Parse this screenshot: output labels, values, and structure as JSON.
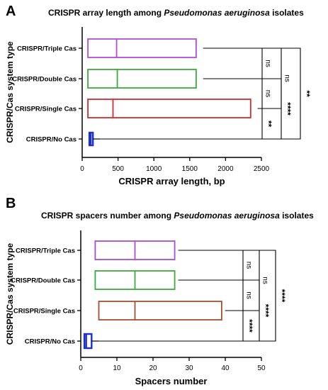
{
  "chart_data": [
    {
      "panel_label": "A",
      "type": "box",
      "orientation": "horizontal",
      "title_parts": [
        {
          "text": "CRISPR array length among ",
          "italic": false
        },
        {
          "text": "Pseudomonas aeruginosa",
          "italic": true
        },
        {
          "text": " isolates",
          "italic": false
        }
      ],
      "xlabel": "CRISPR array length, bp",
      "ylabel": "CRISPR/Cas system type",
      "xlim": [
        0,
        2500
      ],
      "xticks": [
        0,
        500,
        1000,
        1500,
        2000,
        2500
      ],
      "categories": [
        "CRISPR/Triple Cas",
        "CRISPR/Double Cas",
        "CRISPR/Single Cas",
        "CRISPR/No Cas"
      ],
      "boxes": [
        {
          "category": "CRISPR/Triple Cas",
          "min": 80,
          "median": 480,
          "max": 1590,
          "color": "#b04fd6"
        },
        {
          "category": "CRISPR/Double Cas",
          "min": 80,
          "median": 490,
          "max": 1590,
          "color": "#3daa3d"
        },
        {
          "category": "CRISPR/Single Cas",
          "min": 80,
          "median": 430,
          "max": 2350,
          "color": "#d22e2e"
        },
        {
          "category": "CRISPR/No Cas",
          "min": 100,
          "median": 120,
          "max": 150,
          "color": "#1f2fd0"
        }
      ],
      "comparisons": [
        {
          "from": 0,
          "to": 1,
          "level": 0,
          "label": "ns"
        },
        {
          "from": 1,
          "to": 2,
          "level": 0,
          "label": "ns"
        },
        {
          "from": 2,
          "to": 3,
          "level": 0,
          "label": "**"
        },
        {
          "from": 0,
          "to": 2,
          "level": 1,
          "label": "ns"
        },
        {
          "from": 1,
          "to": 3,
          "level": 1,
          "label": "****"
        },
        {
          "from": 0,
          "to": 3,
          "level": 2,
          "label": "**"
        }
      ]
    },
    {
      "panel_label": "B",
      "type": "box",
      "orientation": "horizontal",
      "title_parts": [
        {
          "text": "CRISPR spacers number among ",
          "italic": false
        },
        {
          "text": "Pseudomonas aeruginosa",
          "italic": true
        },
        {
          "text": " isolates",
          "italic": false
        }
      ],
      "xlabel": "Spacers number",
      "ylabel": "CRISPR/Cas system type",
      "xlim": [
        0,
        50
      ],
      "xticks": [
        0,
        10,
        20,
        30,
        40,
        50
      ],
      "categories": [
        "CRISPR/Triple Cas",
        "CRISPR/Double Cas",
        "CRISPR/Single Cas",
        "CRISPR/No Cas"
      ],
      "boxes": [
        {
          "category": "CRISPR/Triple Cas",
          "min": 4,
          "median": 15,
          "max": 26,
          "color": "#a54fd6"
        },
        {
          "category": "CRISPR/Double Cas",
          "min": 4,
          "median": 15,
          "max": 26,
          "color": "#3daa3d"
        },
        {
          "category": "CRISPR/Single Cas",
          "min": 5,
          "median": 15,
          "max": 39,
          "color": "#a0522d"
        },
        {
          "category": "CRISPR/No Cas",
          "min": 1,
          "median": 1.5,
          "max": 3,
          "color": "#1f2fd0"
        }
      ],
      "comparisons": [
        {
          "from": 0,
          "to": 1,
          "level": 0,
          "label": "ns"
        },
        {
          "from": 1,
          "to": 2,
          "level": 0,
          "label": "ns"
        },
        {
          "from": 2,
          "to": 3,
          "level": 0,
          "label": "****"
        },
        {
          "from": 0,
          "to": 2,
          "level": 1,
          "label": "ns"
        },
        {
          "from": 1,
          "to": 3,
          "level": 1,
          "label": "****"
        },
        {
          "from": 0,
          "to": 3,
          "level": 2,
          "label": "****"
        }
      ]
    }
  ]
}
